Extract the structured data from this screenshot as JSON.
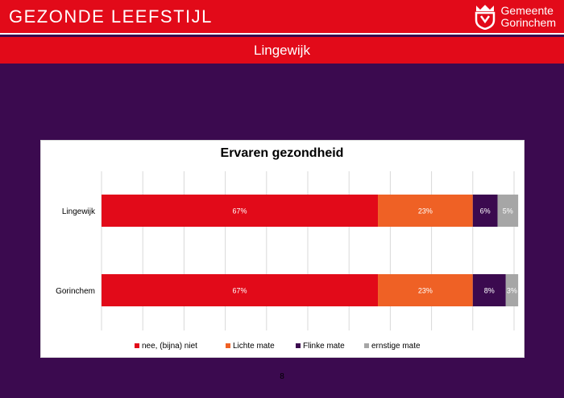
{
  "header": {
    "title": "GEZONDE LEEFSTIJL",
    "logo_line1": "Gemeente",
    "logo_line2": "Gorinchem"
  },
  "subheader": {
    "title": "Lingewijk"
  },
  "colors": {
    "brand_red": "#e20a19",
    "background_purple": "#3b0a4f",
    "series_nee": "#e20a19",
    "series_lichte": "#ef6125",
    "series_flinke": "#3b0a4f",
    "series_ernstige": "#a6a6a6"
  },
  "chart_data": {
    "type": "bar",
    "orientation": "horizontal",
    "stacked": true,
    "percent": true,
    "title": "Ervaren gezondheid",
    "categories": [
      "Lingewijk",
      "Gorinchem"
    ],
    "series": [
      {
        "name": "nee, (bijna) niet",
        "values": [
          67,
          67
        ],
        "labels": [
          "67%",
          "67%"
        ],
        "color": "#e20a19"
      },
      {
        "name": "Lichte mate",
        "values": [
          23,
          23
        ],
        "labels": [
          "23%",
          "23%"
        ],
        "color": "#ef6125"
      },
      {
        "name": "Flinke mate",
        "values": [
          6,
          8
        ],
        "labels": [
          "6%",
          "8%"
        ],
        "color": "#3b0a4f"
      },
      {
        "name": "ernstige mate",
        "values": [
          5,
          3
        ],
        "labels": [
          "5%",
          "3%"
        ],
        "color": "#a6a6a6"
      }
    ],
    "xlim": [
      0,
      100
    ],
    "grid": true,
    "legend": "bottom"
  },
  "footer": {
    "page_number": "8"
  }
}
